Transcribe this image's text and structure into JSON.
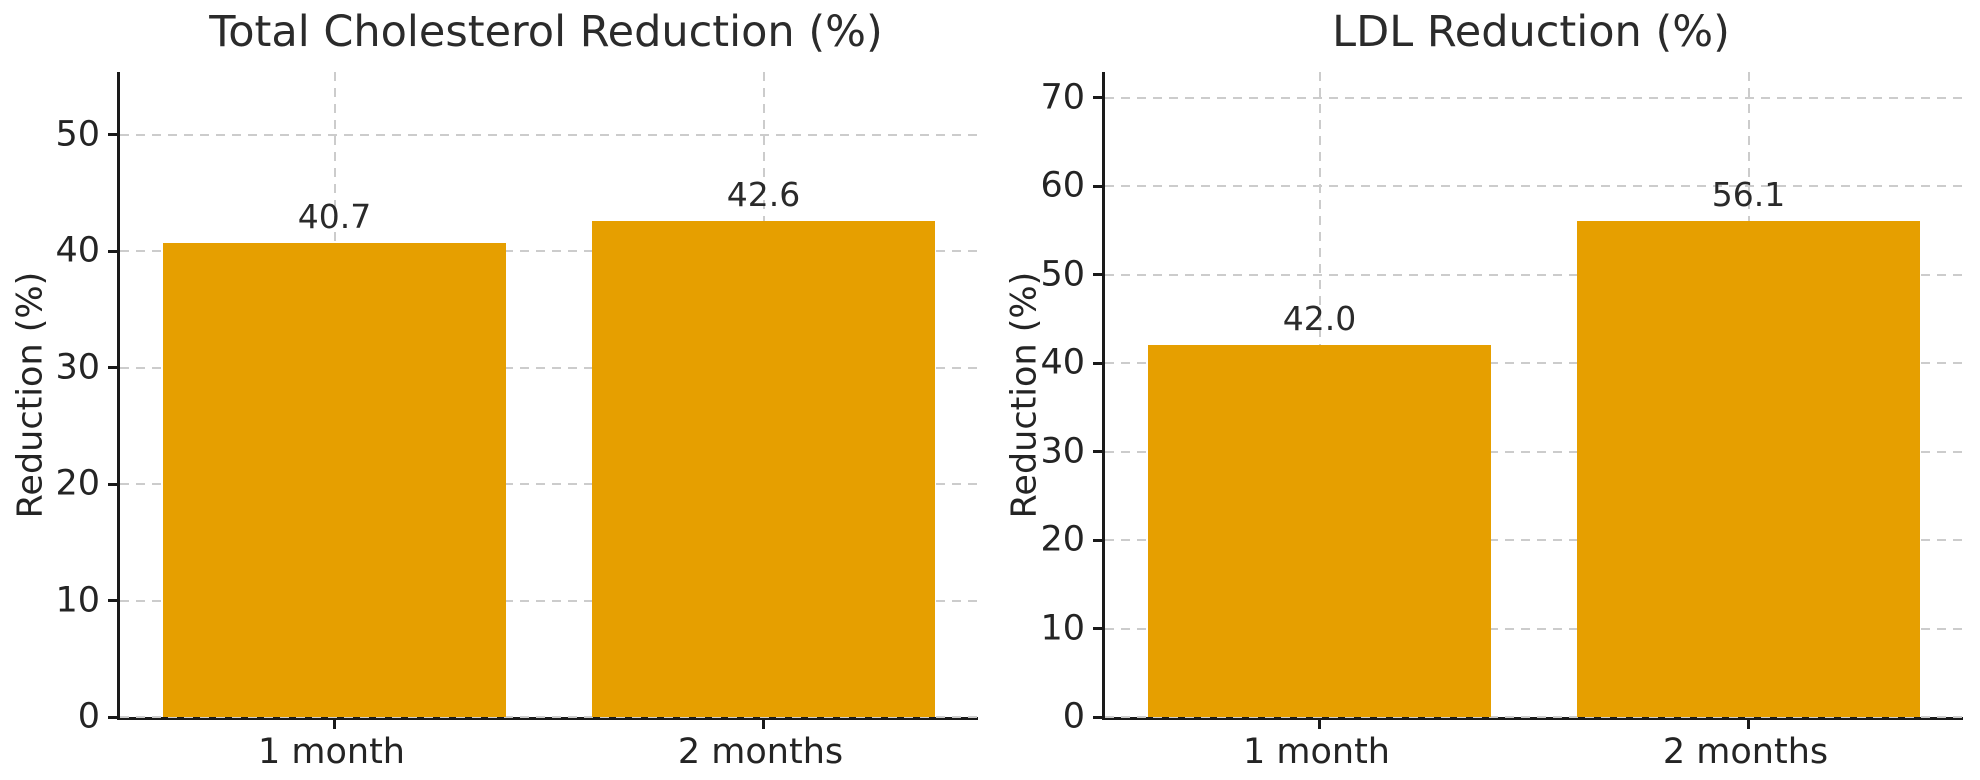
{
  "figure": {
    "background_color": "#ffffff",
    "text_color": "#242424",
    "grid_color": "#cccccc",
    "axis_color": "#1a1a1a"
  },
  "chart_data": [
    {
      "type": "bar",
      "title": "Total Cholesterol Reduction (%)",
      "categories": [
        "1 month",
        "2 months"
      ],
      "values": [
        40.7,
        42.6
      ],
      "value_labels": [
        "40.7",
        "42.6"
      ],
      "xlabel": "",
      "ylabel": "Reduction (%)",
      "yticks": [
        0,
        10,
        20,
        30,
        40,
        50
      ],
      "ylim": [
        0,
        55.4
      ],
      "bar_color": "#E69F00",
      "grid": "dashed horizontal and vertical",
      "legend": "none"
    },
    {
      "type": "bar",
      "title": "LDL Reduction (%)",
      "categories": [
        "1 month",
        "2 months"
      ],
      "values": [
        42.0,
        56.1
      ],
      "value_labels": [
        "42.0",
        "56.1"
      ],
      "xlabel": "",
      "ylabel": "Reduction (%)",
      "yticks": [
        0,
        10,
        20,
        30,
        40,
        50,
        60,
        70
      ],
      "ylim": [
        0,
        72.9
      ],
      "bar_color": "#E69F00",
      "grid": "dashed horizontal and vertical",
      "legend": "none"
    }
  ]
}
